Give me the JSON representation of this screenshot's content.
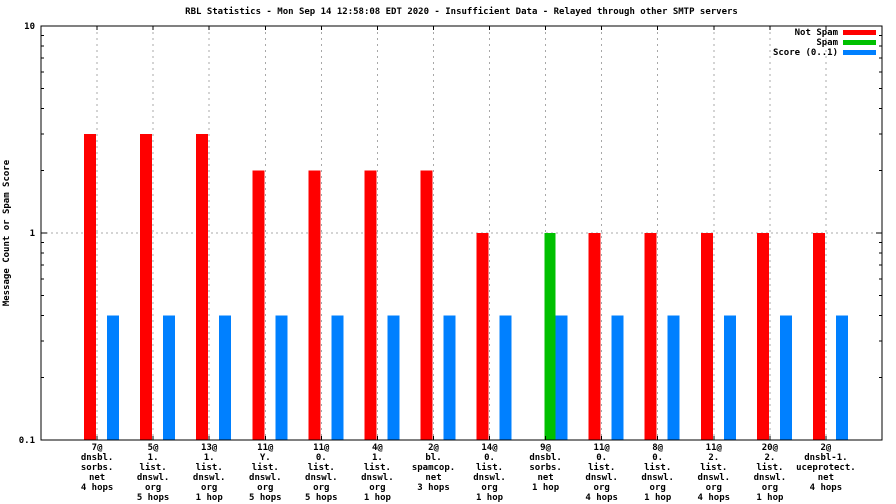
{
  "chart_data": {
    "type": "bar",
    "title": "RBL Statistics - Mon Sep 14 12:58:08 EDT 2020 - Insufficient Data - Relayed through other SMTP servers",
    "ylabel": "Message Count or Spam Score",
    "xlabel": "",
    "yscale": "log",
    "ylim": [
      0.1,
      10
    ],
    "ytick_labels": [
      "0.1",
      "1",
      "10"
    ],
    "grid": {
      "horizontal_line_at": 1,
      "vertical_lines": "at each category center",
      "style": "dotted-gray"
    },
    "legend": {
      "position": "top-right-inside",
      "entries": [
        "Not Spam",
        "Spam",
        "Score (0..1)"
      ]
    },
    "categories": [
      [
        "7@",
        "dnsbl.",
        "sorbs.",
        "net",
        "4 hops"
      ],
      [
        "5@",
        "1.",
        "list.",
        "dnswl.",
        "org",
        "5 hops"
      ],
      [
        "13@",
        "1.",
        "list.",
        "dnswl.",
        "org",
        "1 hop"
      ],
      [
        "11@",
        "Y.",
        "list.",
        "dnswl.",
        "org",
        "5 hops"
      ],
      [
        "11@",
        "0.",
        "list.",
        "dnswl.",
        "org",
        "5 hops"
      ],
      [
        "4@",
        "1.",
        "list.",
        "dnswl.",
        "org",
        "1 hop"
      ],
      [
        "2@",
        "bl.",
        "spamcop.",
        "net",
        "3 hops"
      ],
      [
        "14@",
        "0.",
        "list.",
        "dnswl.",
        "org",
        "1 hop"
      ],
      [
        "9@",
        "dnsbl.",
        "sorbs.",
        "net",
        "1 hop"
      ],
      [
        "11@",
        "0.",
        "list.",
        "dnswl.",
        "org",
        "4 hops"
      ],
      [
        "8@",
        "0.",
        "list.",
        "dnswl.",
        "org",
        "1 hop"
      ],
      [
        "11@",
        "2.",
        "list.",
        "dnswl.",
        "org",
        "4 hops"
      ],
      [
        "20@",
        "2.",
        "list.",
        "dnswl.",
        "org",
        "1 hop"
      ],
      [
        "2@",
        "dnsbl-1.",
        "uceprotect.",
        "net",
        "4 hops"
      ]
    ],
    "series": [
      {
        "name": "Not Spam",
        "color": "#ff0000",
        "values": [
          3,
          3,
          3,
          2,
          2,
          2,
          2,
          1,
          null,
          1,
          1,
          1,
          1,
          1
        ]
      },
      {
        "name": "Spam",
        "color": "#00c000",
        "values": [
          null,
          null,
          null,
          null,
          null,
          null,
          null,
          null,
          1,
          null,
          null,
          null,
          null,
          null
        ]
      },
      {
        "name": "Score (0..1)",
        "color": "#0080ff",
        "values": [
          0.4,
          0.4,
          0.4,
          0.4,
          0.4,
          0.4,
          0.4,
          0.4,
          0.4,
          0.4,
          0.4,
          0.4,
          0.4,
          0.4
        ]
      }
    ],
    "colors": {
      "grid": "#a8a8a8",
      "axis": "#000000",
      "background": "#ffffff",
      "text": "#000000"
    }
  }
}
